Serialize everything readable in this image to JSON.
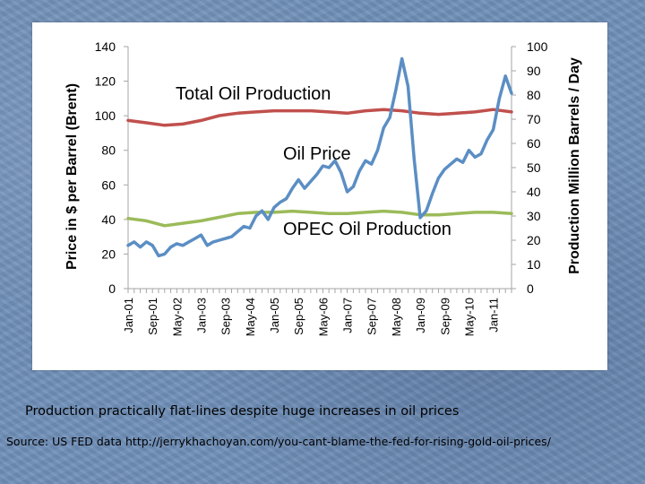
{
  "captions": {
    "main": "Production practically  flat-lines despite huge increases in oil prices",
    "source": "Source: US FED data http://jerrykhachoyan.com/you-cant-blame-the-fed-for-rising-gold-oil-prices/"
  },
  "chart_data": {
    "type": "line",
    "title": "",
    "xlabel": "",
    "ylabel": "Price in $ per Barrel (Brent)",
    "y2label": "Production Million Barrels / Day",
    "ylim": [
      0,
      140
    ],
    "y2lim": [
      0,
      100
    ],
    "yticks": [
      "0",
      "20",
      "40",
      "60",
      "80",
      "100",
      "120",
      "140"
    ],
    "y2ticks": [
      "0",
      "10",
      "20",
      "30",
      "40",
      "50",
      "60",
      "70",
      "80",
      "90",
      "100"
    ],
    "xticks": [
      "Jan-01",
      "Sep-01",
      "May-02",
      "Jan-03",
      "Sep-03",
      "May-04",
      "Jan-05",
      "Sep-05",
      "May-06",
      "Jan-07",
      "Sep-07",
      "May-08",
      "Jan-09",
      "Sep-09",
      "May-10",
      "Jan-11"
    ],
    "grid": false,
    "annotations": {
      "total": "Total Oil Production",
      "price": "Oil Price",
      "opec": "OPEC Oil Production"
    },
    "series": [
      {
        "name": "Oil Price",
        "axis": "left",
        "color": "#5b8ec4",
        "x": [
          0,
          2,
          4,
          6,
          8,
          10,
          12,
          14,
          16,
          18,
          20,
          22,
          24,
          26,
          28,
          30,
          32,
          34,
          36,
          38,
          40,
          42,
          44,
          46,
          48,
          50,
          52,
          54,
          56,
          58,
          60,
          62,
          64,
          66,
          68,
          70,
          72,
          74,
          76,
          78,
          80,
          82,
          84,
          86,
          88,
          90,
          92,
          94,
          96,
          98,
          100,
          102,
          104,
          106,
          108,
          110,
          112,
          114,
          116,
          118,
          120,
          122,
          124,
          126
        ],
        "values": [
          25,
          27,
          24,
          27,
          25,
          19,
          20,
          24,
          26,
          25,
          27,
          29,
          31,
          25,
          27,
          28,
          29,
          30,
          33,
          36,
          35,
          42,
          45,
          40,
          47,
          50,
          52,
          58,
          63,
          58,
          62,
          66,
          71,
          70,
          74,
          67,
          56,
          59,
          68,
          74,
          72,
          80,
          93,
          99,
          115,
          133,
          117,
          75,
          41,
          45,
          55,
          64,
          69,
          72,
          75,
          73,
          80,
          76,
          78,
          86,
          92,
          110,
          123,
          113
        ]
      },
      {
        "name": "Total Oil Production",
        "axis": "right",
        "color": "#c0504d",
        "x": [
          0,
          6,
          12,
          18,
          24,
          30,
          36,
          42,
          48,
          54,
          60,
          66,
          72,
          78,
          84,
          90,
          96,
          102,
          108,
          114,
          120,
          126
        ],
        "values": [
          69.5,
          68.5,
          67.5,
          68,
          69.5,
          71.5,
          72.5,
          73,
          73.5,
          73.5,
          73.5,
          73,
          72.5,
          73.5,
          74,
          73.5,
          72.5,
          72,
          72.5,
          73,
          74,
          73
        ]
      },
      {
        "name": "OPEC Oil Production",
        "axis": "right",
        "color": "#9bbb59",
        "x": [
          0,
          6,
          12,
          18,
          24,
          30,
          36,
          42,
          48,
          54,
          60,
          66,
          72,
          78,
          84,
          90,
          96,
          102,
          108,
          114,
          120,
          126
        ],
        "values": [
          29,
          28,
          26,
          27,
          28,
          29.5,
          31,
          31.5,
          31.5,
          32,
          31.5,
          31,
          31,
          31.5,
          32,
          31.5,
          30.5,
          30.5,
          31,
          31.5,
          31.5,
          31
        ]
      }
    ]
  }
}
